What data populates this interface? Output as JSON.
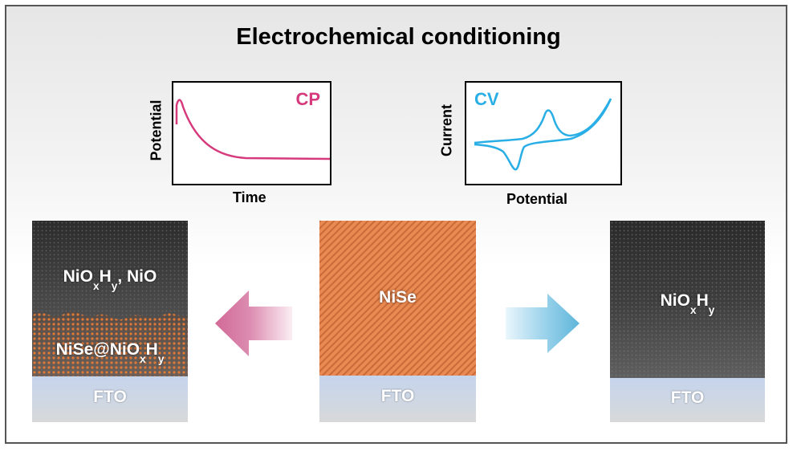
{
  "title": "Electrochemical conditioning",
  "cp_plot": {
    "tag": "CP",
    "xlabel": "Time",
    "ylabel": "Potential",
    "color": "#d63a7c"
  },
  "cv_plot": {
    "tag": "CV",
    "xlabel": "Potential",
    "ylabel": "Current",
    "color": "#29aee6"
  },
  "left_sample": {
    "top_label_parts": [
      "NiO",
      "x",
      "H",
      "y",
      ", NiO"
    ],
    "mid_label_parts": [
      "NiSe@NiO",
      "x",
      "H",
      "y"
    ],
    "substrate_label": "FTO"
  },
  "center_sample": {
    "label": "NiSe",
    "substrate_label": "FTO",
    "color": "#e98a52"
  },
  "right_sample": {
    "label_parts": [
      "NiO",
      "x",
      "H",
      "y"
    ],
    "substrate_label": "FTO"
  },
  "arrows": {
    "left_color": "#d16a96",
    "right_color": "#5db5da"
  }
}
